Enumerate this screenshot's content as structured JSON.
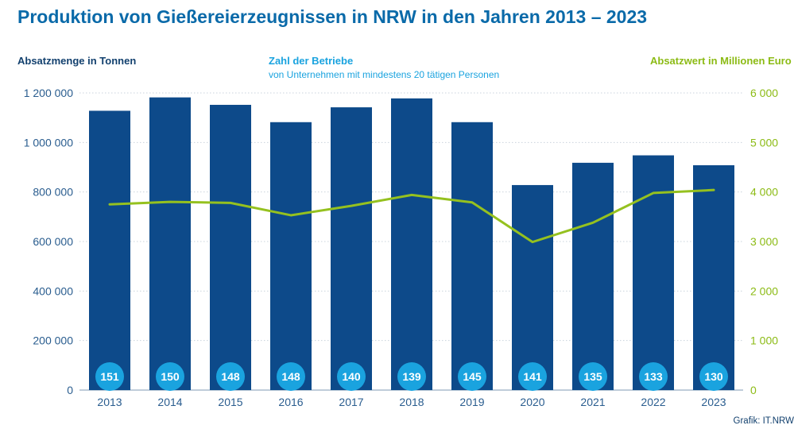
{
  "title": "Produktion von Gießereierzeugnissen in NRW in den Jahren 2013 – 2023",
  "source": "Grafik: IT.NRW",
  "colors": {
    "bars": "#0d4a8a",
    "line": "#95c11f",
    "badge": "#1aa3df",
    "grid": "#c9d3dc"
  },
  "chart_data": {
    "type": "bar",
    "categories": [
      "2013",
      "2014",
      "2015",
      "2016",
      "2017",
      "2018",
      "2019",
      "2020",
      "2021",
      "2022",
      "2023"
    ],
    "left_axis": {
      "label": "Absatzmenge in Tonnen",
      "ylim": [
        0,
        1200000
      ],
      "ticks": [
        "0",
        "200 000",
        "400 000",
        "600 000",
        "800 000",
        "1 000 000",
        "1 200 000"
      ]
    },
    "right_axis": {
      "label": "Absatzwert in Millionen Euro",
      "ylim": [
        0,
        6000
      ],
      "ticks": [
        "0",
        "1 000",
        "2 000",
        "3 000",
        "4 000",
        "5 000",
        "6 000"
      ]
    },
    "badges_label": "Zahl der Betriebe",
    "badges_sublabel": "von Unternehmen mit mindestens 20 tätigen Personen",
    "series": [
      {
        "name": "Absatzmenge in Tonnen",
        "type": "bar",
        "axis": "left",
        "values": [
          1128000,
          1182000,
          1152000,
          1082000,
          1142000,
          1178000,
          1082000,
          828000,
          918000,
          948000,
          908000
        ]
      },
      {
        "name": "Absatzwert in Millionen Euro",
        "type": "line",
        "axis": "right",
        "values": [
          3750,
          3800,
          3780,
          3530,
          3720,
          3940,
          3790,
          2990,
          3380,
          3980,
          4040
        ]
      },
      {
        "name": "Zahl der Betriebe",
        "type": "badge",
        "values": [
          151,
          150,
          148,
          148,
          140,
          139,
          145,
          141,
          135,
          133,
          130
        ]
      }
    ],
    "grid": true
  }
}
